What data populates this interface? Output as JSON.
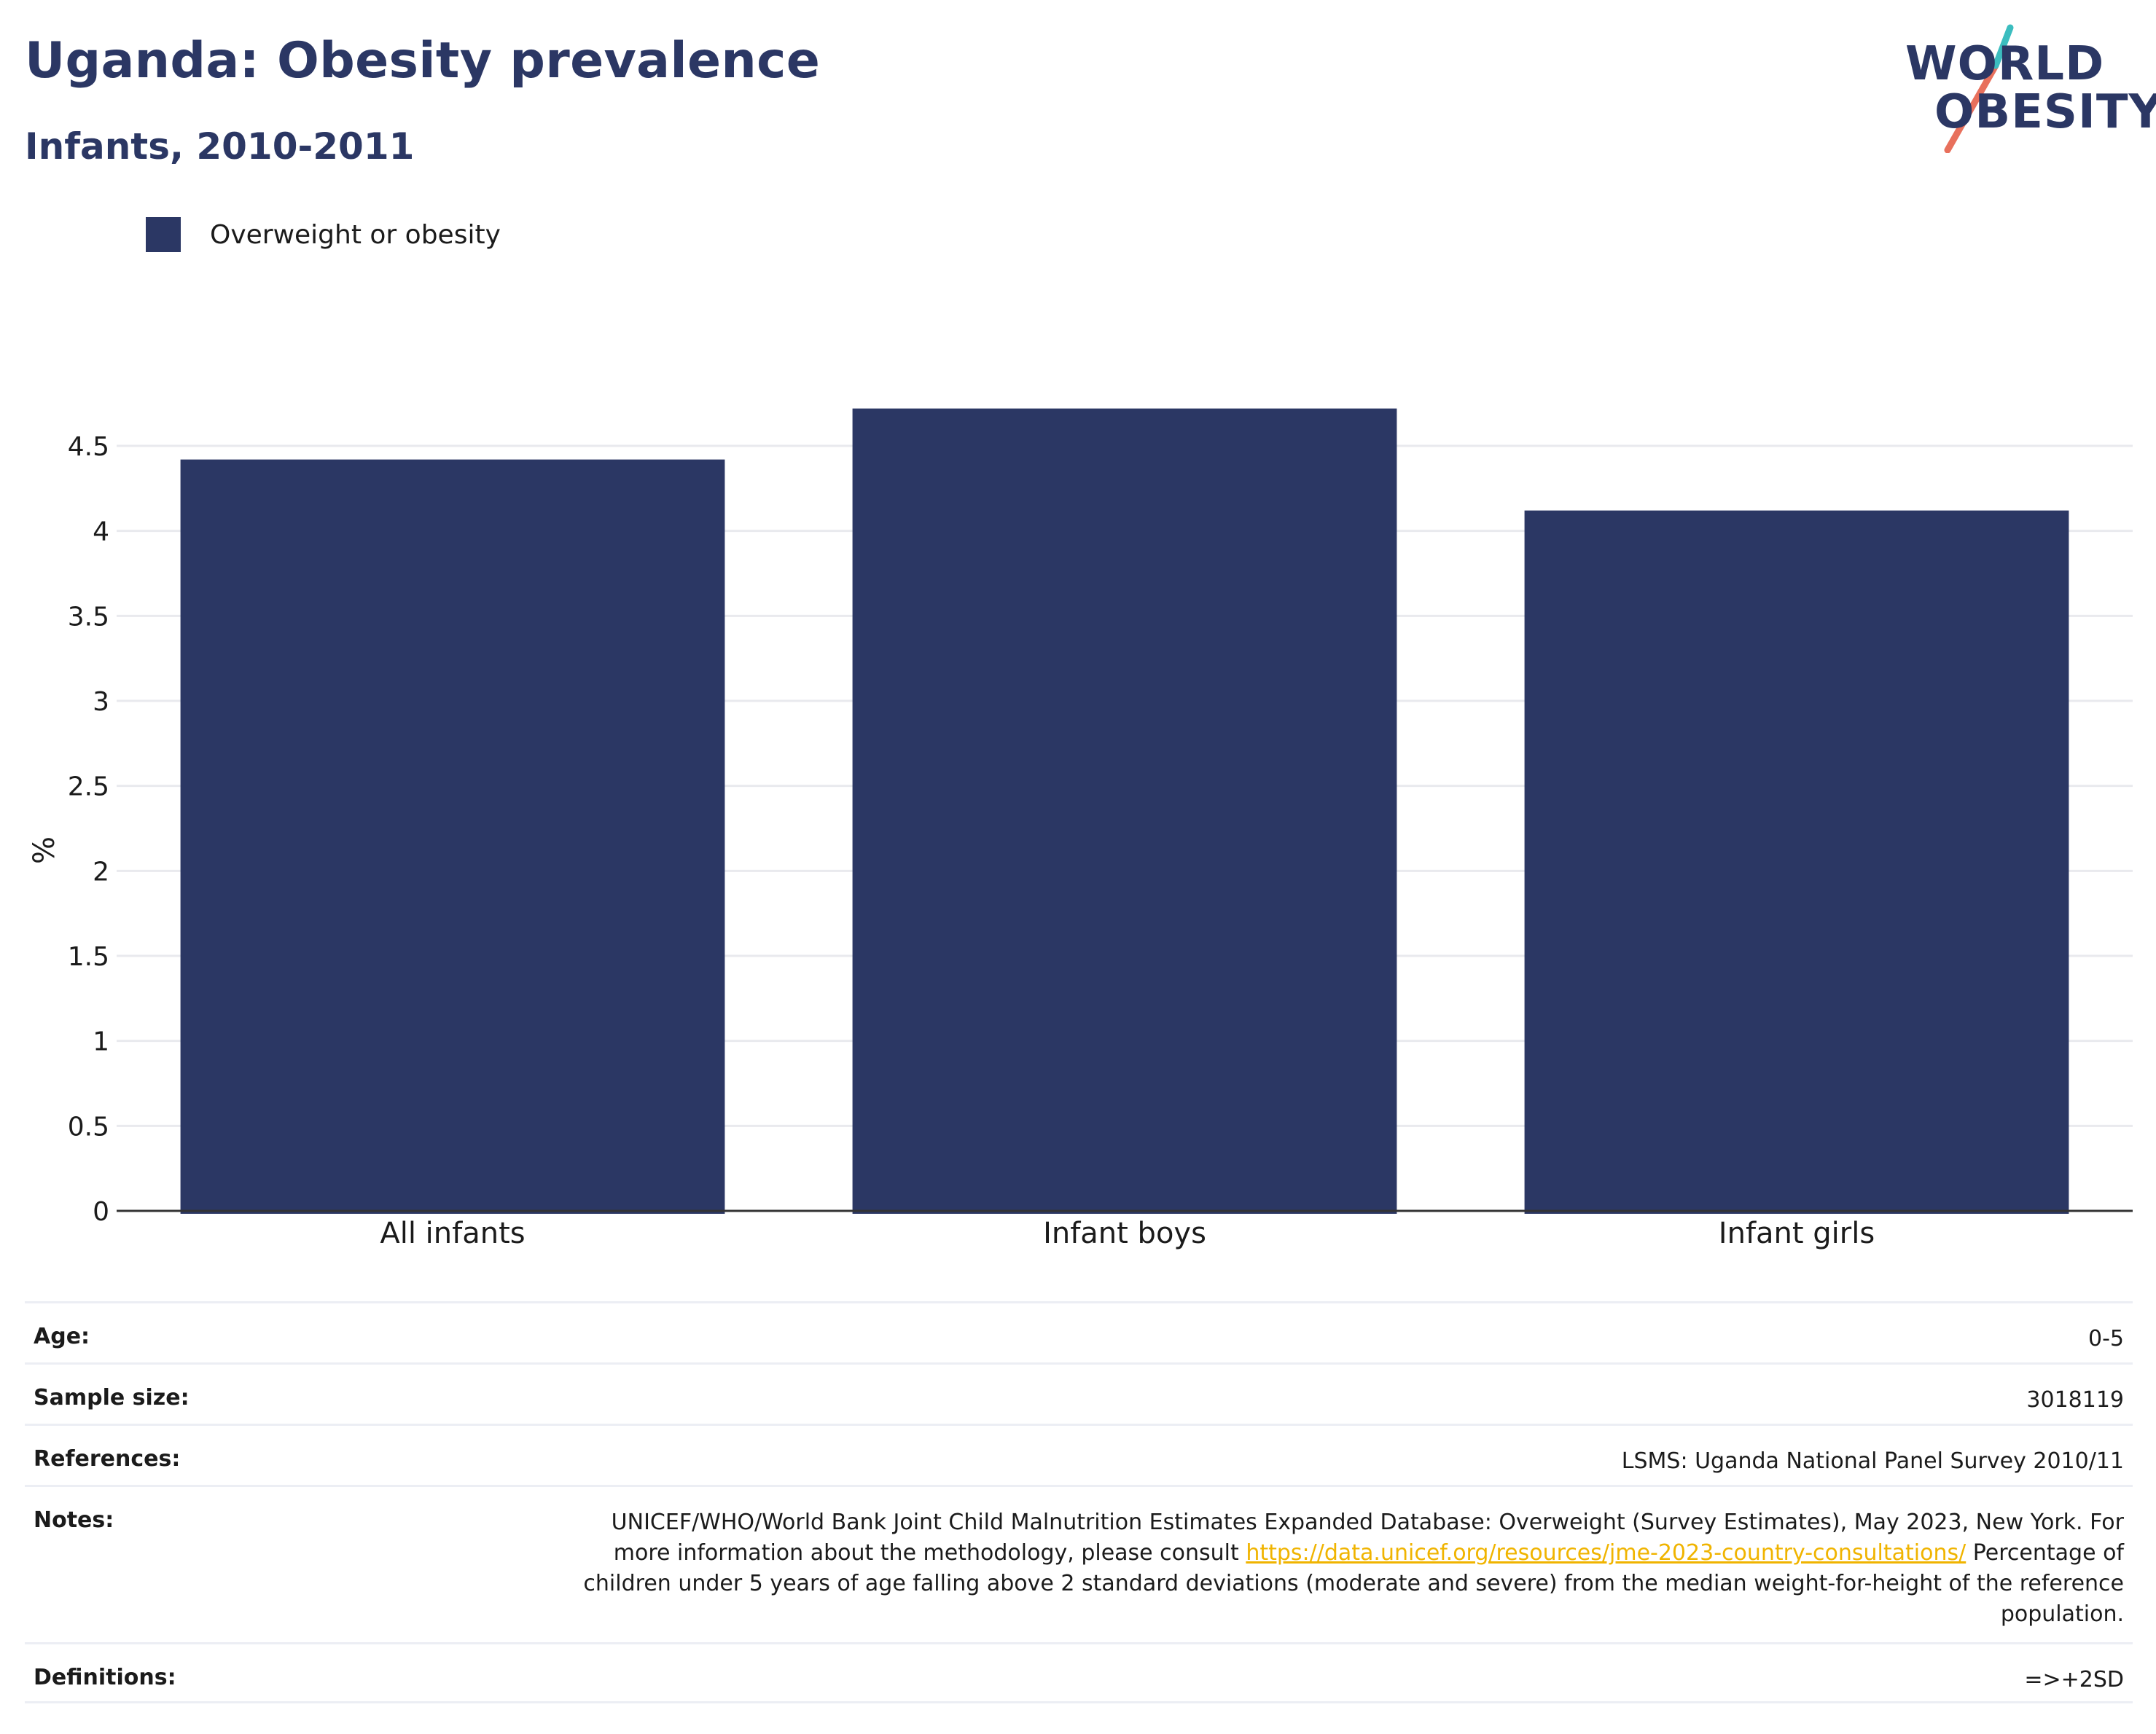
{
  "header": {
    "title": "Uganda: Obesity prevalence",
    "subtitle": "Infants, 2010-2011"
  },
  "logo": {
    "line1": "WORLD",
    "line2": "OBESITY",
    "colors": {
      "navy": "#2b3764",
      "teal": "#3bbdbf",
      "coral": "#e8705c"
    }
  },
  "legend": {
    "items": [
      {
        "label": "Overweight or obesity",
        "color": "#2b3764"
      }
    ]
  },
  "chart_data": {
    "type": "bar",
    "categories": [
      "All infants",
      "Infant boys",
      "Infant girls"
    ],
    "series": [
      {
        "name": "Overweight or obesity",
        "values": [
          4.42,
          4.72,
          4.12
        ],
        "color": "#2b3764"
      }
    ],
    "ylabel": "%",
    "xlabel": "",
    "ylim": [
      0,
      4.5
    ],
    "yticks": [
      0,
      0.5,
      1,
      1.5,
      2,
      2.5,
      3,
      3.5,
      4,
      4.5
    ],
    "ytick_labels": [
      "0",
      "0.5",
      "1",
      "1.5",
      "2",
      "2.5",
      "3",
      "3.5",
      "4",
      "4.5"
    ],
    "grid": true,
    "legend_position": "top-left"
  },
  "info": {
    "age": {
      "label": "Age:",
      "value": "0-5"
    },
    "sample_size": {
      "label": "Sample size:",
      "value": "3018119"
    },
    "references": {
      "label": "References:",
      "value": "LSMS: Uganda National Panel Survey 2010/11"
    },
    "notes": {
      "label": "Notes:",
      "text_before": "UNICEF/WHO/World Bank Joint Child Malnutrition Estimates Expanded Database: Overweight (Survey Estimates), May 2023, New York. For more information about the methodology, please consult",
      "link": "https://data.unicef.org/resources/jme-2023-country-consultations/",
      "text_after": "Percentage of children under 5 years of age falling above 2 standard deviations (moderate and severe) from the median weight-for-height of the reference population."
    },
    "definitions": {
      "label": "Definitions:",
      "value": "=>+2SD"
    }
  }
}
